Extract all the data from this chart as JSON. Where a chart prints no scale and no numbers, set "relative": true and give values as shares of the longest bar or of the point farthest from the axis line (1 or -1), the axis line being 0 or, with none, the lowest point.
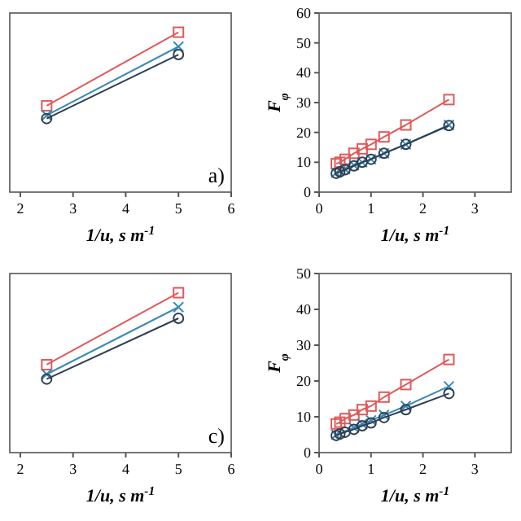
{
  "chart_data": [
    {
      "type": "line",
      "relative": true,
      "xlabel": "1/u, s m$^{-1}$",
      "x": [
        2.5,
        5
      ],
      "xlim": [
        1.8,
        6
      ],
      "xticks": [
        2,
        3,
        4,
        5,
        6
      ],
      "annotations": [
        "a)"
      ],
      "series": [
        {
          "color": "#e05a5a",
          "marker": "square",
          "values": [
            0.54,
            1
          ]
        },
        {
          "color": "#3a8ab8",
          "marker": "cross",
          "values": [
            0.48,
            0.91
          ]
        },
        {
          "color": "#2f3f4f",
          "marker": "circle",
          "values": [
            0.46,
            0.86
          ]
        }
      ]
    },
    {
      "type": "line",
      "xlabel": "1/u, s m$^{-1}$",
      "ylabel": "F$_{φ}$",
      "x": [
        0.33,
        0.4,
        0.5,
        0.67,
        0.83,
        1,
        1.25,
        1.67,
        2.5
      ],
      "xlim": [
        0,
        3.7
      ],
      "xticks": [
        0,
        1,
        2,
        3
      ],
      "ylim": [
        0,
        60
      ],
      "yticks": [
        0,
        10,
        20,
        30,
        40,
        50,
        60
      ],
      "series": [
        {
          "color": "#e05a5a",
          "marker": "square",
          "values": [
            9.5,
            10,
            11,
            13,
            14.5,
            16,
            18.5,
            22.5,
            31
          ]
        },
        {
          "color": "#3a8ab8",
          "marker": "cross",
          "values": [
            6.5,
            null,
            7.7,
            9,
            10,
            11,
            13,
            16,
            22.5
          ]
        },
        {
          "color": "#2f3f4f",
          "marker": "circle",
          "values": [
            6.3,
            6.8,
            7.5,
            8.8,
            10,
            11,
            13,
            16,
            22.3
          ]
        }
      ]
    },
    {
      "type": "line",
      "relative": true,
      "xlabel": "1/u, s m$^{-1}$",
      "x": [
        2.5,
        5
      ],
      "xlim": [
        1.8,
        6
      ],
      "xticks": [
        2,
        3,
        4,
        5,
        6
      ],
      "annotations": [
        "c)"
      ],
      "series": [
        {
          "color": "#e05a5a",
          "marker": "square",
          "values": [
            0.55,
            1
          ]
        },
        {
          "color": "#3a8ab8",
          "marker": "cross",
          "values": [
            0.49,
            0.91
          ]
        },
        {
          "color": "#2f3f4f",
          "marker": "circle",
          "values": [
            0.46,
            0.84
          ]
        }
      ]
    },
    {
      "type": "line",
      "xlabel": "1/u, s m$^{-1}$",
      "ylabel": "F$_{φ}$",
      "x": [
        0.33,
        0.4,
        0.5,
        0.67,
        0.83,
        1,
        1.25,
        1.67,
        2.5
      ],
      "xlim": [
        0,
        3.7
      ],
      "xticks": [
        0,
        1,
        2,
        3
      ],
      "ylim": [
        0,
        50
      ],
      "yticks": [
        0,
        10,
        20,
        30,
        40,
        50
      ],
      "series": [
        {
          "color": "#e05a5a",
          "marker": "square",
          "values": [
            8,
            8.5,
            9.5,
            10.5,
            12,
            13,
            15.5,
            19,
            26
          ]
        },
        {
          "color": "#3a8ab8",
          "marker": "cross",
          "values": [
            5,
            null,
            null,
            7,
            8,
            9,
            10.5,
            13,
            18.5
          ]
        },
        {
          "color": "#2f3f4f",
          "marker": "circle",
          "values": [
            4.8,
            5.2,
            5.7,
            6.5,
            7.5,
            8.3,
            9.8,
            12,
            16.5
          ]
        }
      ]
    }
  ]
}
